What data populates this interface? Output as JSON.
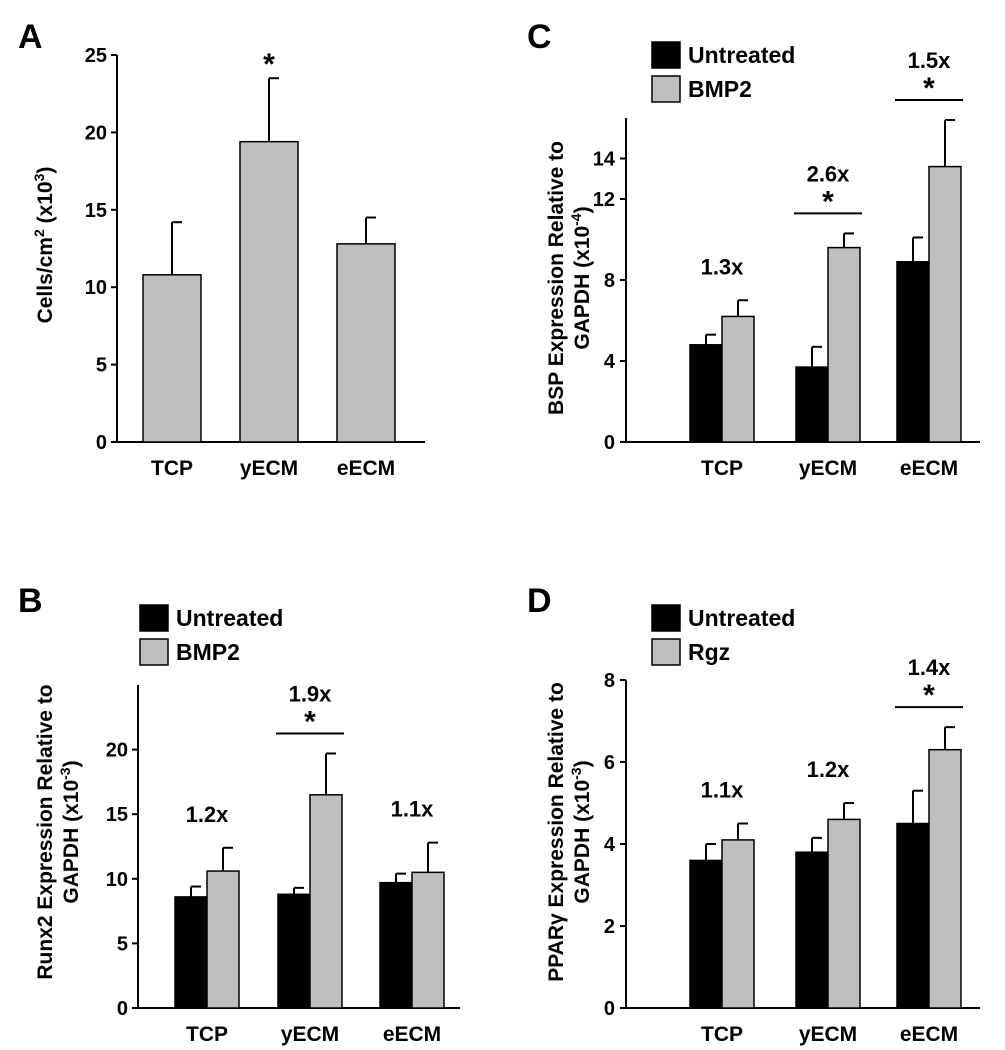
{
  "colors": {
    "untreated": "#000000",
    "treated": "#bfbfbf",
    "axis": "#000000"
  },
  "chart_data": [
    {
      "panel": "A",
      "type": "bar",
      "ylabel_main": "Cells/cm",
      "ylabel_sup1": "2",
      "ylabel_mid": " (x10",
      "ylabel_sup2": "3",
      "ylabel_end": ")",
      "ylim": [
        0,
        25
      ],
      "yticks": [
        "0",
        "5",
        "10",
        "15",
        "20",
        "25"
      ],
      "categories": [
        "TCP",
        "yECM",
        "eECM"
      ],
      "series": [
        {
          "name": "Cells",
          "values": [
            10.8,
            19.4,
            12.8
          ],
          "errors": [
            3.4,
            4.1,
            1.7
          ]
        }
      ],
      "significance": [
        "",
        "*",
        ""
      ]
    },
    {
      "panel": "B",
      "type": "bar",
      "ylabel_line1": "Runx2 Expression Relative to",
      "ylabel_line2_main": "GAPDH (x10",
      "ylabel_line2_sup": "-3",
      "ylabel_line2_end": ")",
      "ylim": [
        0,
        25
      ],
      "yticks": [
        "0",
        "5",
        "10",
        "15",
        "20"
      ],
      "categories": [
        "TCP",
        "yECM",
        "eECM"
      ],
      "legend": [
        "Untreated",
        "BMP2"
      ],
      "series": [
        {
          "name": "Untreated",
          "values": [
            8.6,
            8.8,
            9.7
          ],
          "errors": [
            0.8,
            0.5,
            0.7
          ]
        },
        {
          "name": "BMP2",
          "values": [
            10.6,
            16.5,
            10.5
          ],
          "errors": [
            1.8,
            3.2,
            2.3
          ]
        }
      ],
      "fold_changes": [
        "1.2x",
        "1.9x",
        "1.1x"
      ],
      "significance": [
        "",
        "*",
        ""
      ]
    },
    {
      "panel": "C",
      "type": "bar",
      "ylabel_line1": "BSP Expression Relative to",
      "ylabel_line2_main": "GAPDH (x10",
      "ylabel_line2_sup": "-4",
      "ylabel_line2_end": ")",
      "ylim": [
        0,
        16
      ],
      "yticks": [
        "0",
        "4",
        "8",
        "12",
        "14"
      ],
      "ytick_values": [
        0,
        4,
        8,
        12,
        14
      ],
      "categories": [
        "TCP",
        "yECM",
        "eECM"
      ],
      "legend": [
        "Untreated",
        "BMP2"
      ],
      "series": [
        {
          "name": "Untreated",
          "values": [
            4.8,
            3.7,
            8.9
          ],
          "errors": [
            0.5,
            1.0,
            1.2
          ]
        },
        {
          "name": "BMP2",
          "values": [
            6.2,
            9.6,
            13.6
          ],
          "errors": [
            0.8,
            0.7,
            2.3
          ]
        }
      ],
      "fold_changes": [
        "1.3x",
        "2.6x",
        "1.5x"
      ],
      "significance": [
        "",
        "*",
        "*"
      ]
    },
    {
      "panel": "D",
      "type": "bar",
      "ylabel_line1": "PPARγ Expression Relative to",
      "ylabel_line2_main": "GAPDH (x10",
      "ylabel_line2_sup": "-3",
      "ylabel_line2_end": ")",
      "ylim": [
        0,
        8
      ],
      "yticks": [
        "0",
        "2",
        "4",
        "6",
        "8"
      ],
      "categories": [
        "TCP",
        "yECM",
        "eECM"
      ],
      "legend": [
        "Untreated",
        "Rgz"
      ],
      "series": [
        {
          "name": "Untreated",
          "values": [
            3.6,
            3.8,
            4.5
          ],
          "errors": [
            0.4,
            0.35,
            0.8
          ]
        },
        {
          "name": "Rgz",
          "values": [
            4.1,
            4.6,
            6.3
          ],
          "errors": [
            0.4,
            0.4,
            0.55
          ]
        }
      ],
      "fold_changes": [
        "1.1x",
        "1.2x",
        "1.4x"
      ],
      "significance": [
        "",
        "",
        "*"
      ]
    }
  ]
}
